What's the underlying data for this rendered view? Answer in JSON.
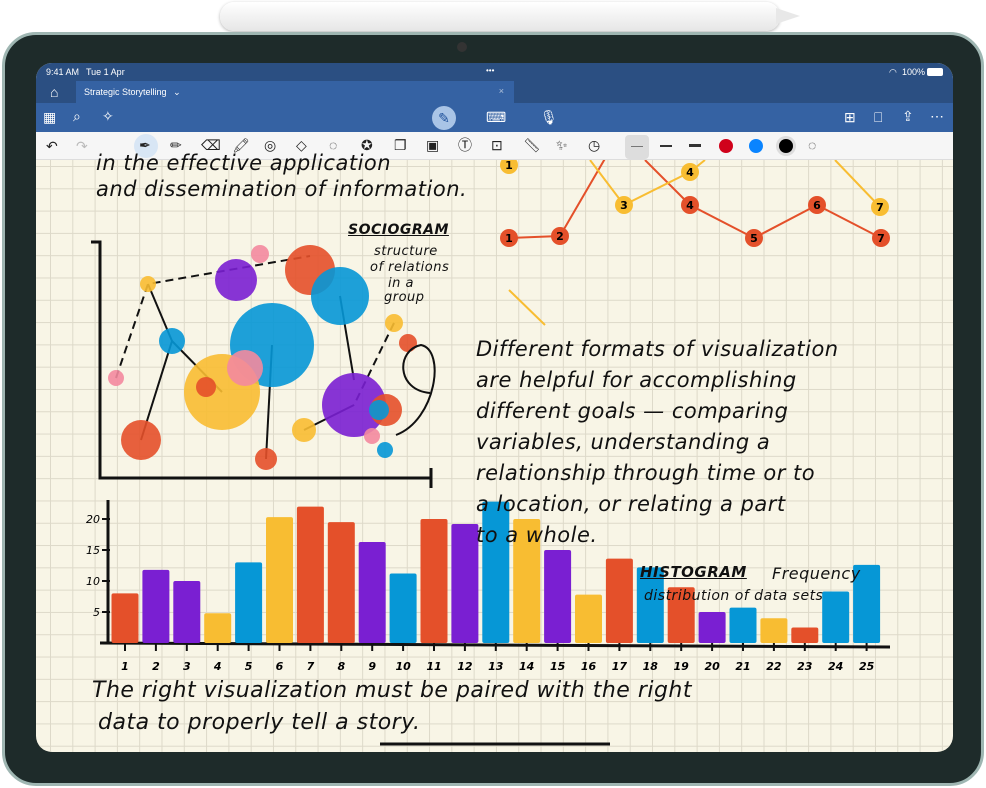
{
  "status_bar": {
    "time": "9:41 AM",
    "date": "Tue 1 Apr",
    "battery": "100%"
  },
  "tab": {
    "title": "Strategic Storytelling",
    "close": "×"
  },
  "toolbar": {
    "left_icons": [
      "grid-icon",
      "search-icon",
      "lasso-sparkle-icon"
    ],
    "center_icons": [
      "pen-mode-icon",
      "keyboard-icon",
      "microphone-icon"
    ],
    "right_icons": [
      "add-page-icon",
      "bookmark-icon",
      "share-icon",
      "more-icon"
    ]
  },
  "pen_toolbar": {
    "tools": [
      "undo",
      "redo",
      "pen",
      "pencil",
      "eraser",
      "highlighter",
      "tape",
      "shapes",
      "lasso",
      "sticker",
      "sticky-note",
      "image",
      "text-box",
      "scan",
      "ruler",
      "magic-wand",
      "history"
    ],
    "stroke_widths": [
      "thin",
      "medium",
      "thick"
    ],
    "colors": {
      "red": "#d0021b",
      "blue": "#0a84ff",
      "black": "#000000"
    }
  },
  "note": {
    "intro_lines": [
      "in the effective application",
      "and dissemination of information."
    ],
    "sociogram_title": "SOCIOGRAM",
    "sociogram_caption": [
      "structure",
      "of relations",
      "in a",
      "group"
    ],
    "paragraph": [
      "Different formats of visualization",
      "are helpful for accomplishing",
      "different goals — comparing",
      "variables, understanding a",
      "relationship through time or to",
      "a location, or relating a part",
      "to a whole."
    ],
    "histogram_title": "HISTOGRAM",
    "histogram_caption_1": "Frequency",
    "histogram_caption_2": "distribution of data sets",
    "closing": [
      "The right visualization must be paired with the right",
      "data to properly tell a story."
    ]
  },
  "line_chart": {
    "red_labels": [
      "1",
      "2",
      "4",
      "5",
      "6",
      "7"
    ],
    "yellow_labels": [
      "1",
      "3",
      "4",
      "7"
    ],
    "colors": {
      "red": "#e4502a",
      "yellow": "#f8bd32"
    }
  },
  "chart_data": {
    "type": "bar",
    "categories": [
      "1",
      "2",
      "3",
      "4",
      "5",
      "6",
      "7",
      "8",
      "9",
      "10",
      "11",
      "12",
      "13",
      "14",
      "15",
      "16",
      "17",
      "18",
      "19",
      "20",
      "21",
      "22",
      "23",
      "24",
      "25"
    ],
    "values": [
      8,
      11.8,
      10,
      4.8,
      13,
      20.3,
      22,
      19.5,
      16.3,
      11.2,
      20,
      19.2,
      22.8,
      20,
      15,
      7.8,
      13.6,
      12.2,
      9,
      5,
      5.7,
      4,
      2.5,
      8.3,
      12.6
    ],
    "bar_colors": [
      "red",
      "purple",
      "purple",
      "yellow",
      "blue",
      "yellow",
      "red",
      "red",
      "purple",
      "blue",
      "red",
      "purple",
      "blue",
      "yellow",
      "purple",
      "yellow",
      "red",
      "blue",
      "red",
      "purple",
      "blue",
      "yellow",
      "red",
      "blue",
      "blue"
    ],
    "yticks": [
      "5",
      "10",
      "15",
      "20"
    ],
    "ylim": [
      0,
      24
    ],
    "palette": {
      "red": "#e4502a",
      "purple": "#7a1fd2",
      "yellow": "#f8bd32",
      "blue": "#0697d6"
    }
  }
}
